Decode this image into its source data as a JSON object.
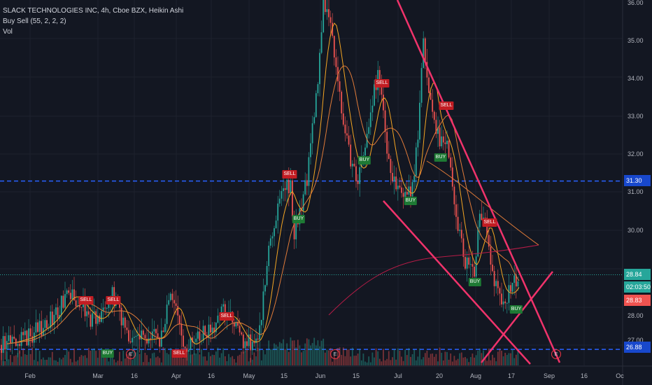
{
  "legend": {
    "title": "SLACK TECHNOLOGIES INC, 4h, Cboe BZX, Heikin Ashi",
    "indicator": "Buy Sell (55, 2, 2, 2)",
    "volume": "Vol"
  },
  "colors": {
    "background": "#131722",
    "up": "#26a69a",
    "down": "#ef5350",
    "trendline": "#f0336b",
    "hline": "#2962ff"
  },
  "price_axis": {
    "ticks": [
      "36.00",
      "35.00",
      "34.00",
      "33.00",
      "32.00",
      "31.00",
      "30.00",
      "28.00",
      "27.00"
    ],
    "labels": {
      "level_high": "31.30",
      "last_price": "28.84",
      "countdown": "02:03:50",
      "last_close": "28.83",
      "level_low": "26.88"
    }
  },
  "time_axis": {
    "ticks": [
      "Feb",
      "Mar",
      "16",
      "Apr",
      "16",
      "May",
      "15",
      "Jun",
      "15",
      "Jul",
      "20",
      "Aug",
      "17",
      "Sep",
      "16",
      "Oc"
    ]
  },
  "signals": [
    {
      "label": "SELL",
      "type": "sell"
    },
    {
      "label": "SELL",
      "type": "sell"
    },
    {
      "label": "SELL",
      "type": "sell"
    },
    {
      "label": "SELL",
      "type": "sell"
    },
    {
      "label": "SELL",
      "type": "sell"
    },
    {
      "label": "SELL",
      "type": "sell"
    },
    {
      "label": "SELL",
      "type": "sell"
    },
    {
      "label": "SELL",
      "type": "sell"
    },
    {
      "label": "BUY",
      "type": "buy"
    },
    {
      "label": "BUY",
      "type": "buy"
    },
    {
      "label": "BUY",
      "type": "buy"
    },
    {
      "label": "BUY",
      "type": "buy"
    },
    {
      "label": "BUY",
      "type": "buy"
    },
    {
      "label": "BUY",
      "type": "buy"
    },
    {
      "label": "BUY",
      "type": "buy"
    }
  ],
  "earnings_marks": [
    "E",
    "E",
    "E"
  ]
}
